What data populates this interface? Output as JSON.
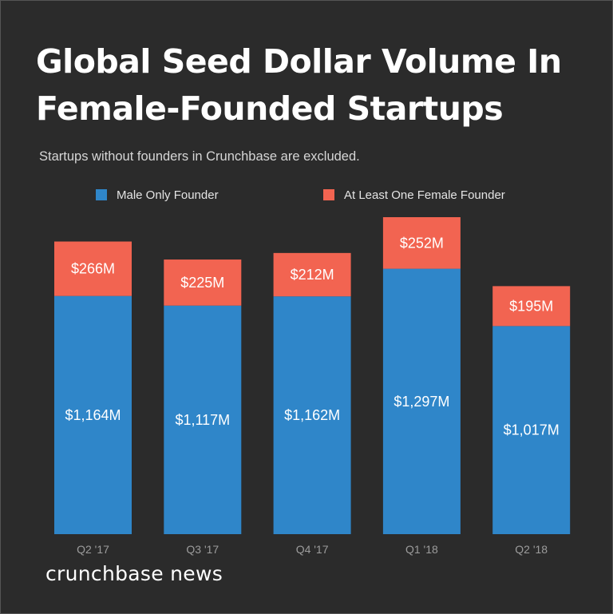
{
  "title": "Global Seed Dollar Volume In Female-Founded Startups",
  "subtitle": "Startups without founders in Crunchbase are excluded.",
  "brand": "crunchbase news",
  "colors": {
    "background": "#2b2b2b",
    "male": "#2f86c9",
    "female": "#f26451"
  },
  "chart_data": {
    "type": "bar",
    "stacked": true,
    "categories": [
      "Q2 '17",
      "Q3 '17",
      "Q4 '17",
      "Q1 '18",
      "Q2 '18"
    ],
    "series": [
      {
        "name": "Male Only Founder",
        "values": [
          1164,
          1117,
          1162,
          1297,
          1017
        ],
        "labels": [
          "$1,164M",
          "$1,117M",
          "$1,162M",
          "$1,297M",
          "$1,017M"
        ],
        "color": "#2f86c9"
      },
      {
        "name": "At Least One Female Founder",
        "values": [
          266,
          225,
          212,
          252,
          195
        ],
        "labels": [
          "$266M",
          "$225M",
          "$212M",
          "$252M",
          "$195M"
        ],
        "color": "#f26451"
      }
    ],
    "title": "Global Seed Dollar Volume In Female-Founded Startups",
    "subtitle": "Startups without founders in Crunchbase are excluded.",
    "xlabel": "",
    "ylabel": "",
    "unit": "$M",
    "ylim": [
      0,
      1549
    ],
    "grid": false,
    "y_axis_visible": false,
    "legend_position": "top"
  }
}
